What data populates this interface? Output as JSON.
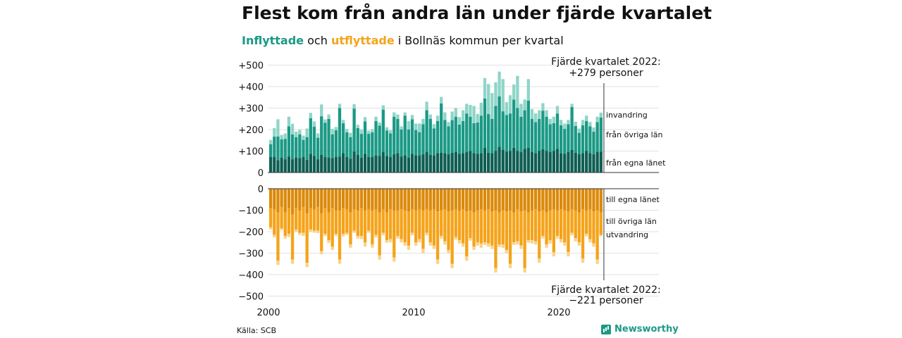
{
  "title": "Flest kom från andra län under fjärde kvartalet",
  "subtitle": {
    "part1": "Inflyttade",
    "part2": " och ",
    "part3": "utflyttade",
    "part4": " i Bollnäs kommun per kvartal"
  },
  "source": "Källa: SCB",
  "brand": "Newsworthy",
  "colors": {
    "in_own": "#0e5e53",
    "in_other": "#1a9985",
    "in_abroad": "#8fd5c8",
    "out_own": "#db8a0b",
    "out_other": "#f5a31a",
    "out_abroad": "#f9d38a"
  },
  "chart_data": {
    "type": "bar",
    "x_label_ticks": [
      "2000",
      "2010",
      "2020"
    ],
    "y_ticks_top": [
      "+500",
      "+400",
      "+300",
      "+200",
      "+100",
      "0"
    ],
    "y_ticks_bottom": [
      "0",
      "−100",
      "−200",
      "−300",
      "−400",
      "−500"
    ],
    "ylim_in": [
      0,
      500
    ],
    "ylim_out": [
      -500,
      0
    ],
    "first_quarter": "2000 Q1",
    "last_quarter": "2022 Q4",
    "annotation_top": {
      "line1": "Fjärde kvartalet 2022:",
      "line2": "+279 personer"
    },
    "annotation_bottom": {
      "line1": "Fjärde kvartalet 2022:",
      "line2": "−221 personer"
    },
    "inflow_labels": [
      "invandring",
      "från övriga län",
      "från egna länet"
    ],
    "outflow_labels": [
      "till egna länet",
      "till övriga län",
      "utvandring"
    ],
    "series": [
      {
        "name": "från egna länet",
        "values": [
          72,
          72,
          58,
          70,
          62,
          75,
          62,
          70,
          68,
          72,
          60,
          88,
          78,
          62,
          82,
          72,
          70,
          68,
          72,
          75,
          90,
          72,
          65,
          98,
          82,
          70,
          88,
          72,
          72,
          80,
          78,
          95,
          78,
          72,
          85,
          90,
          75,
          80,
          70,
          88,
          80,
          80,
          85,
          95,
          82,
          80,
          90,
          92,
          90,
          85,
          92,
          95,
          88,
          90,
          95,
          100,
          90,
          88,
          90,
          115,
          92,
          90,
          100,
          120,
          105,
          98,
          100,
          115,
          100,
          95,
          110,
          115,
          95,
          90,
          100,
          108,
          100,
          95,
          100,
          110,
          90,
          88,
          95,
          105,
          92,
          85,
          90,
          100,
          90,
          85,
          95,
          98
        ]
      },
      {
        "name": "från övriga län",
        "values": [
          60,
          95,
          110,
          85,
          95,
          140,
          115,
          95,
          110,
          80,
          105,
          165,
          135,
          100,
          180,
          160,
          180,
          110,
          125,
          225,
          140,
          115,
          100,
          200,
          125,
          110,
          150,
          108,
          115,
          160,
          140,
          198,
          118,
          110,
          175,
          160,
          125,
          185,
          130,
          160,
          118,
          108,
          140,
          195,
          168,
          125,
          150,
          230,
          155,
          130,
          152,
          165,
          135,
          150,
          180,
          160,
          140,
          145,
          175,
          230,
          180,
          160,
          210,
          235,
          180,
          170,
          175,
          225,
          200,
          165,
          180,
          220,
          155,
          145,
          150,
          180,
          160,
          130,
          130,
          165,
          130,
          115,
          130,
          200,
          125,
          100,
          130,
          140,
          125,
          105,
          140,
          158
        ]
      },
      {
        "name": "invandring",
        "values": [
          20,
          40,
          80,
          20,
          25,
          45,
          50,
          25,
          20,
          20,
          40,
          25,
          25,
          20,
          55,
          15,
          20,
          25,
          15,
          20,
          15,
          15,
          20,
          20,
          15,
          20,
          20,
          15,
          15,
          20,
          15,
          20,
          15,
          15,
          20,
          20,
          15,
          15,
          40,
          20,
          30,
          40,
          25,
          40,
          20,
          20,
          25,
          30,
          35,
          20,
          40,
          40,
          35,
          50,
          45,
          55,
          80,
          40,
          60,
          95,
          140,
          120,
          110,
          115,
          150,
          60,
          85,
          70,
          150,
          60,
          50,
          100,
          45,
          40,
          40,
          35,
          30,
          25,
          30,
          35,
          25,
          25,
          20,
          15,
          20,
          20,
          25,
          25,
          20,
          20,
          25,
          23
        ]
      },
      {
        "name": "till egna länet",
        "values": [
          -90,
          -95,
          -110,
          -85,
          -110,
          -90,
          -120,
          -90,
          -100,
          -85,
          -115,
          -90,
          -95,
          -85,
          -115,
          -90,
          -110,
          -90,
          -100,
          -100,
          -90,
          -95,
          -110,
          -95,
          -100,
          -90,
          -100,
          -95,
          -100,
          -95,
          -110,
          -95,
          -110,
          -95,
          -100,
          -100,
          -95,
          -100,
          -105,
          -95,
          -100,
          -95,
          -100,
          -95,
          -100,
          -95,
          -105,
          -100,
          -95,
          -105,
          -100,
          -95,
          -100,
          -95,
          -105,
          -100,
          -110,
          -100,
          -95,
          -100,
          -95,
          -105,
          -100,
          -110,
          -100,
          -105,
          -100,
          -110,
          -95,
          -105,
          -100,
          -110,
          -100,
          -95,
          -105,
          -100,
          -110,
          -100,
          -95,
          -100,
          -95,
          -100,
          -105,
          -95,
          -100,
          -110,
          -95,
          -100,
          -95,
          -105,
          -100,
          -110
        ]
      },
      {
        "name": "till övriga län",
        "values": [
          -90,
          -120,
          -225,
          -100,
          -110,
          -120,
          -210,
          -100,
          -105,
          -120,
          -230,
          -100,
          -100,
          -110,
          -175,
          -120,
          -130,
          -180,
          -110,
          -230,
          -120,
          -110,
          -150,
          -100,
          -120,
          -130,
          -150,
          -100,
          -160,
          -120,
          -200,
          -110,
          -130,
          -140,
          -220,
          -120,
          -140,
          -150,
          -160,
          -110,
          -150,
          -140,
          -180,
          -110,
          -150,
          -170,
          -225,
          -120,
          -150,
          -180,
          -250,
          -130,
          -140,
          -160,
          -210,
          -130,
          -160,
          -150,
          -160,
          -150,
          -160,
          -160,
          -270,
          -150,
          -160,
          -180,
          -250,
          -140,
          -150,
          -160,
          -270,
          -130,
          -140,
          -150,
          -220,
          -120,
          -150,
          -140,
          -200,
          -120,
          -140,
          -150,
          -190,
          -110,
          -130,
          -140,
          -230,
          -110,
          -140,
          -150,
          -230,
          -105
        ]
      },
      {
        "name": "utvandring",
        "values": [
          -10,
          -12,
          -20,
          -8,
          -12,
          -15,
          -20,
          -10,
          -10,
          -15,
          -20,
          -12,
          -10,
          -12,
          -15,
          -10,
          -12,
          -15,
          -10,
          -20,
          -12,
          -10,
          -15,
          -10,
          -12,
          -15,
          -20,
          -10,
          -15,
          -12,
          -20,
          -12,
          -12,
          -15,
          -20,
          -12,
          -15,
          -15,
          -20,
          -12,
          -15,
          -15,
          -20,
          -12,
          -15,
          -15,
          -20,
          -12,
          -15,
          -15,
          -20,
          -12,
          -15,
          -15,
          -20,
          -12,
          -15,
          -15,
          -20,
          -12,
          -15,
          -15,
          -20,
          -12,
          -15,
          -15,
          -20,
          -12,
          -15,
          -15,
          -20,
          -12,
          -15,
          -15,
          -20,
          -12,
          -15,
          -15,
          -20,
          -12,
          -15,
          -15,
          -20,
          -12,
          -15,
          -15,
          -20,
          -12,
          -15,
          -15,
          -20,
          -6
        ]
      }
    ]
  }
}
